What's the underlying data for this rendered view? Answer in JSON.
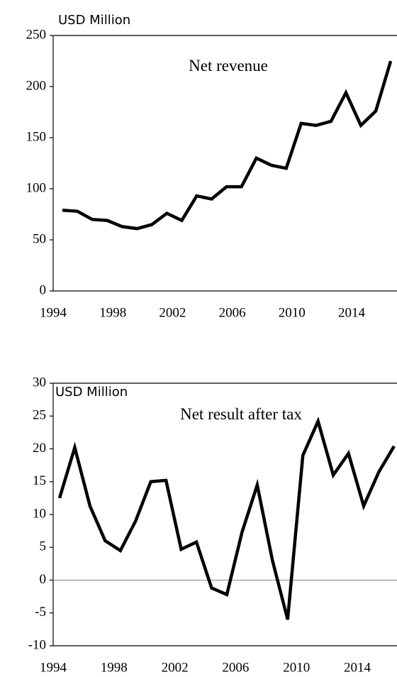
{
  "chart_data": [
    {
      "type": "line",
      "title": "Net revenue",
      "y_label": "USD Million",
      "categories": [
        "1994",
        null,
        null,
        null,
        "1998",
        null,
        null,
        null,
        "2002",
        null,
        null,
        null,
        "2006",
        null,
        null,
        null,
        "2010",
        null,
        null,
        null,
        "2014",
        null,
        null
      ],
      "series": [
        {
          "name": "Net revenue",
          "color": "#000000",
          "values": [
            79,
            78,
            70,
            69,
            63,
            61,
            65,
            76,
            69,
            93,
            90,
            102,
            102,
            130,
            123,
            120,
            164,
            162,
            166,
            194,
            162,
            176,
            225
          ]
        }
      ],
      "ylim": [
        0,
        250
      ],
      "yticks": [
        0,
        50,
        100,
        150,
        200,
        250
      ]
    },
    {
      "type": "line",
      "title": "Net result after tax",
      "y_label": "USD Million",
      "categories": [
        "1994",
        null,
        null,
        null,
        "1998",
        null,
        null,
        null,
        "2002",
        null,
        null,
        null,
        "2006",
        null,
        null,
        null,
        "2010",
        null,
        null,
        null,
        "2014",
        null,
        null
      ],
      "series": [
        {
          "name": "Net result after tax",
          "color": "#000000",
          "values": [
            12.5,
            20.2,
            11.3,
            6,
            4.5,
            9,
            15,
            15.2,
            4.7,
            5.8,
            -1.2,
            -2.2,
            7.3,
            14.5,
            3,
            -6,
            19,
            24.2,
            16,
            19.3,
            11.3,
            16.5,
            20.4
          ]
        }
      ],
      "ylim": [
        -10,
        30
      ],
      "yticks": [
        -10,
        -5,
        0,
        5,
        10,
        15,
        20,
        25,
        30
      ]
    }
  ]
}
